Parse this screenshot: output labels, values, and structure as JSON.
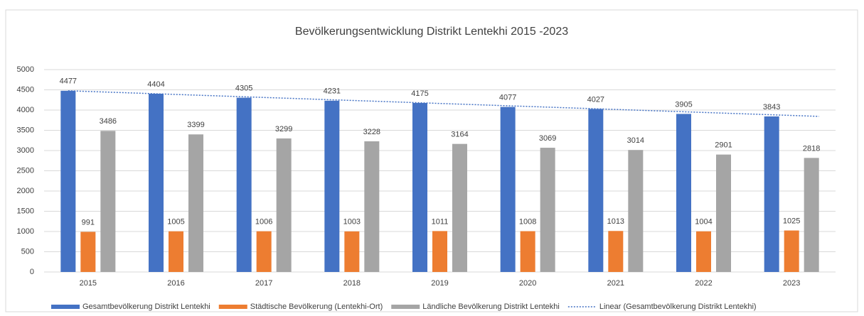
{
  "chart_data": {
    "type": "bar",
    "title": "Bevölkerungsentwicklung Distrikt Lentekhi 2015 -2023",
    "categories": [
      "2015",
      "2016",
      "2017",
      "2018",
      "2019",
      "2020",
      "2021",
      "2022",
      "2023"
    ],
    "series": [
      {
        "name": "Gesamtbevölkerung Distrikt Lentekhi",
        "color": "#4472c4",
        "values": [
          4477,
          4404,
          4305,
          4231,
          4175,
          4077,
          4027,
          3905,
          3843
        ]
      },
      {
        "name": "Städtische Bevölkerung (Lentekhi-Ort)",
        "color": "#ed7d31",
        "values": [
          991,
          1005,
          1006,
          1003,
          1011,
          1008,
          1013,
          1004,
          1025
        ]
      },
      {
        "name": "Ländliche Bevölkerung Distrikt Lentekhi",
        "color": "#a5a5a5",
        "values": [
          3486,
          3399,
          3299,
          3228,
          3164,
          3069,
          3014,
          2901,
          2818
        ]
      }
    ],
    "trendline": {
      "name": "Linear (Gesamtbevölkerung Distrikt Lentekhi)",
      "series": 0,
      "type": "linear",
      "color": "#4472c4"
    },
    "ylim": [
      0,
      5000
    ],
    "yticks": [
      0,
      500,
      1000,
      1500,
      2000,
      2500,
      3000,
      3500,
      4000,
      4500,
      5000
    ],
    "grid": true,
    "legend": "bottom"
  }
}
